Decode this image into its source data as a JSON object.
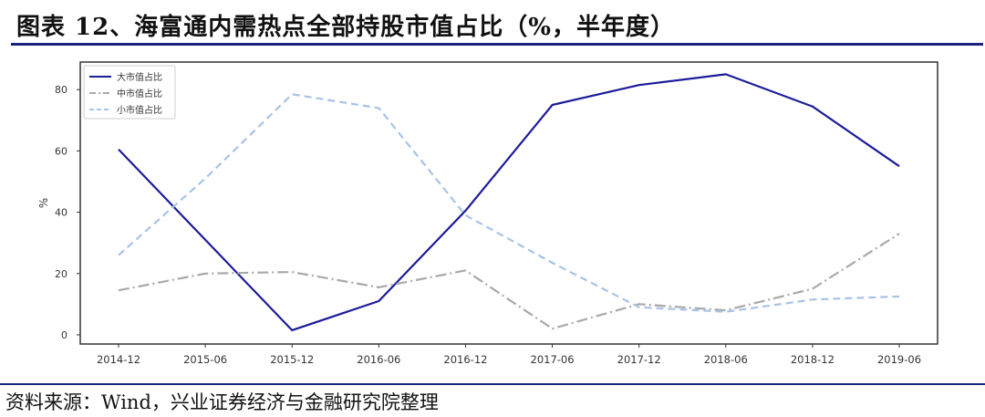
{
  "figure": {
    "title": "图表 12、海富通内需热点全部持股市值占比（%，半年度）",
    "source": "资料来源：Wind，兴业证券经济与金融研究院整理"
  },
  "chart_data": {
    "type": "line",
    "x": [
      "2014-12",
      "2015-06",
      "2015-12",
      "2016-06",
      "2016-12",
      "2017-06",
      "2017-12",
      "2018-06",
      "2018-12",
      "2019-06"
    ],
    "ylabel": "%",
    "xlabel": "",
    "ylim": [
      -3,
      89
    ],
    "yticks": [
      0,
      20,
      40,
      60,
      80
    ],
    "grid": false,
    "legend_position": "top-left",
    "series": [
      {
        "name": "大市值占比",
        "color": "#1c1c99",
        "dash": "solid",
        "values": [
          60.5,
          31,
          1.5,
          11,
          40.5,
          75,
          81.5,
          85,
          74.5,
          55
        ]
      },
      {
        "name": "中市值占比",
        "color": "#a9a9a9",
        "dash": "dashdot",
        "values": [
          14.5,
          20,
          20.5,
          15.5,
          21,
          2,
          10,
          8,
          15,
          33
        ]
      },
      {
        "name": "小市值占比",
        "color": "#a8c3e6",
        "dash": "dashed",
        "values": [
          26,
          51,
          78.5,
          74,
          39,
          23.5,
          9,
          7.5,
          11.5,
          12.5
        ]
      }
    ]
  }
}
